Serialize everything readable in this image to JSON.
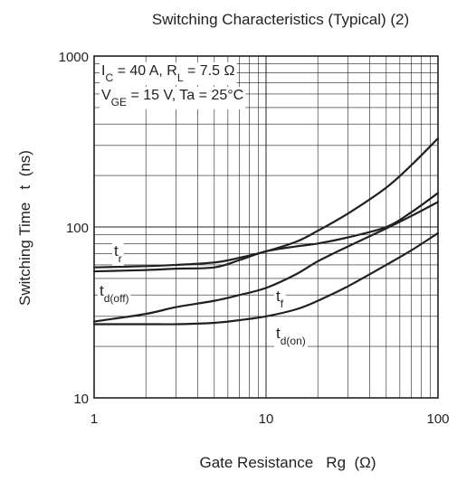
{
  "chart_data": {
    "type": "line",
    "title": "Switching Characteristics (Typical) (2)",
    "xlabel": "Gate Resistance   Rg  (Ω)",
    "ylabel": "Switching Time   t  (ns)",
    "x_scale": "log",
    "y_scale": "log",
    "xlim": [
      1,
      100
    ],
    "ylim": [
      10,
      1000
    ],
    "x_tick_labels": [
      "1",
      "10",
      "100"
    ],
    "y_tick_labels": [
      "10",
      "100",
      "1000"
    ],
    "grid": true,
    "conditions": {
      "line1": {
        "sym1": "I",
        "sub1": "C",
        "mid": " = 40 A, R",
        "sub2": "L",
        "end": " = 7.5 Ω"
      },
      "line2": {
        "sym1": "V",
        "sub1": "GE",
        "end": " = 15 V, Ta = 25°C"
      }
    },
    "series": [
      {
        "name": "t_r",
        "label_base": "t",
        "label_sub": "r",
        "label_position": "superscript-base",
        "x": [
          1,
          2,
          3,
          5,
          7,
          10,
          15,
          20,
          30,
          50,
          70,
          100
        ],
        "y": [
          58,
          59,
          60,
          62,
          66,
          72,
          82,
          95,
          120,
          170,
          230,
          330
        ]
      },
      {
        "name": "t_d(off)",
        "label_base": "t",
        "label_sub": "d(off)",
        "label_position": "superscript-base",
        "x": [
          1,
          2,
          3,
          5,
          7,
          10,
          15,
          20,
          30,
          50,
          70,
          100
        ],
        "y": [
          55,
          56,
          57,
          58,
          64,
          72,
          77,
          80,
          87,
          100,
          122,
          158
        ]
      },
      {
        "name": "t_f",
        "label_base": "t",
        "label_sub": "f",
        "label_position": "superscript-base",
        "x": [
          1,
          2,
          3,
          5,
          7,
          10,
          15,
          20,
          30,
          50,
          70,
          100
        ],
        "y": [
          28,
          31,
          34,
          37,
          40,
          44,
          53,
          63,
          77,
          98,
          116,
          140
        ]
      },
      {
        "name": "t_d(on)",
        "label_base": "t",
        "label_sub": "d(on)",
        "label_position": "superscript-base",
        "x": [
          1,
          2,
          3,
          5,
          7,
          10,
          15,
          20,
          30,
          50,
          70,
          100
        ],
        "y": [
          27,
          27,
          27,
          27.5,
          28.5,
          30,
          33,
          37,
          45,
          60,
          73,
          92
        ]
      }
    ]
  }
}
